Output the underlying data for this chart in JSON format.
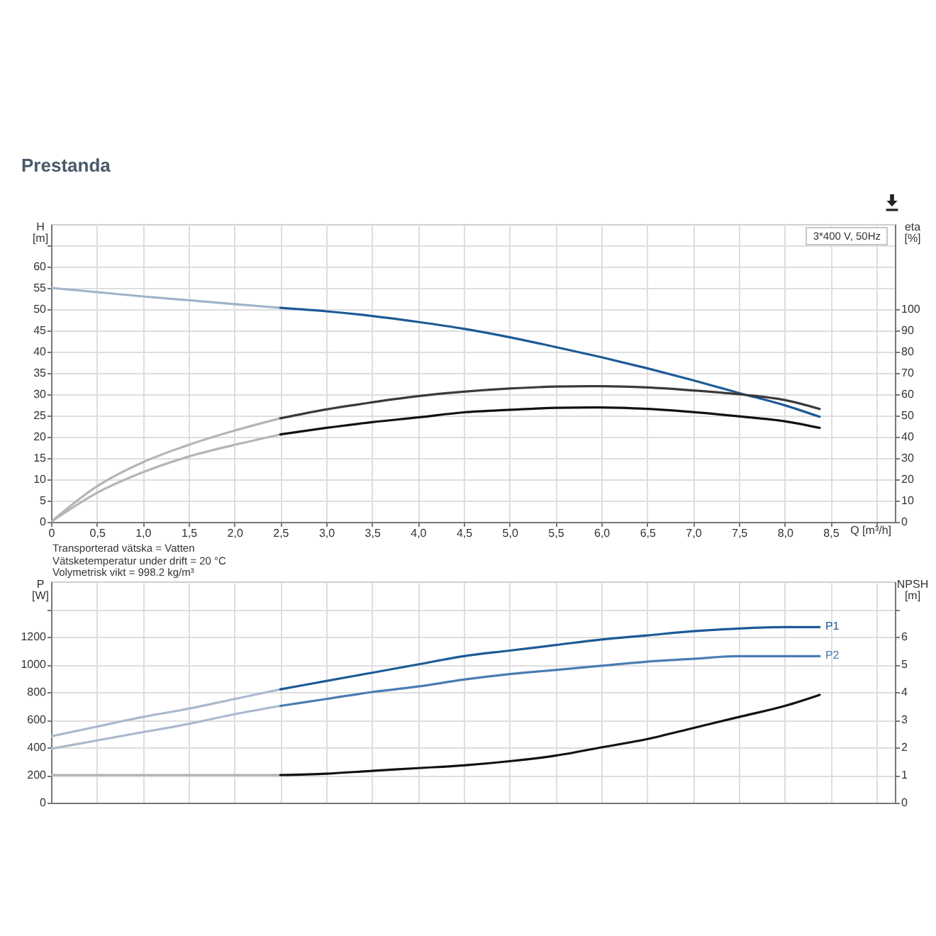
{
  "chart_data": [
    {
      "type": "line",
      "title": "Prestanda",
      "xlabel": "Q [m³/h]",
      "ylabel": "H [m]",
      "y2label": "eta [%]",
      "xlim": [
        0,
        9.2
      ],
      "xticks": [
        0,
        {
          "value": 0.5,
          "label": "0,5"
        },
        {
          "value": 1,
          "label": "1,0"
        },
        {
          "value": 1.5,
          "label": "1,5"
        },
        {
          "value": 2,
          "label": "2,0"
        },
        {
          "value": 2.5,
          "label": "2,5"
        },
        {
          "value": 3,
          "label": "3,0"
        },
        {
          "value": 3.5,
          "label": "3,5"
        },
        {
          "value": 4,
          "label": "4,0"
        },
        {
          "value": 4.5,
          "label": "4,5"
        },
        {
          "value": 5,
          "label": "5,0"
        },
        {
          "value": 5.5,
          "label": "5,5"
        },
        {
          "value": 6,
          "label": "6,0"
        },
        {
          "value": 6.5,
          "label": "6,5"
        },
        {
          "value": 7,
          "label": "7,0"
        },
        {
          "value": 7.5,
          "label": "7,5"
        },
        {
          "value": 8,
          "label": "8,0"
        },
        {
          "value": 8.5,
          "label": "8,5"
        },
        {
          "value": 9,
          "label": null
        }
      ],
      "ylim": [
        0,
        70
      ],
      "yticks": [
        0,
        5,
        10,
        15,
        20,
        25,
        30,
        35,
        40,
        45,
        50,
        55,
        60,
        {
          "value": 65,
          "label": null
        }
      ],
      "y2lim": [
        0,
        140
      ],
      "y2ticks": [
        0,
        10,
        20,
        30,
        40,
        50,
        60,
        70,
        80,
        90,
        100
      ],
      "grid": true,
      "annotations": [
        "3*400 V, 50Hz",
        "Transporterad vätska = Vatten",
        "Vätsketemperatur under drift = 20 °C",
        "Volymetrisk vikt = 998.2 kg/m³"
      ],
      "series": [
        {
          "color": "#9fb3c8",
          "x": [
            0,
            0.5,
            1,
            1.5,
            2,
            2.5
          ],
          "values": [
            55.0,
            54.0,
            53.0,
            52.1,
            51.2,
            50.3
          ]
        },
        {
          "color": "#1c5a96",
          "x": [
            2.5,
            3,
            3.5,
            4,
            4.5,
            5,
            5.5,
            6,
            6.5,
            7,
            7.5,
            8,
            8.38
          ],
          "values": [
            50.3,
            49.5,
            48.4,
            47.0,
            45.4,
            43.4,
            41.1,
            38.7,
            36.1,
            33.3,
            30.3,
            27.4,
            24.7
          ]
        },
        {
          "color": "#b5b5b5",
          "axis": "y2",
          "x": [
            0,
            0.5,
            1,
            1.5,
            2,
            2.5
          ],
          "values": [
            0,
            16.7,
            28,
            36.2,
            42.9,
            48.7
          ]
        },
        {
          "color": "#3a3a3a",
          "axis": "y2",
          "x": [
            2.5,
            3,
            3.5,
            4,
            4.5,
            5,
            5.5,
            6,
            6.5,
            7,
            7.5,
            8,
            8.38
          ],
          "values": [
            48.7,
            52.9,
            56.2,
            59.1,
            61.2,
            62.7,
            63.6,
            63.8,
            63.2,
            61.8,
            60.0,
            57.3,
            53.1
          ]
        },
        {
          "color": "#b5b5b5",
          "axis": "y2",
          "x": [
            0,
            0.5,
            1,
            1.5,
            2,
            2.5
          ],
          "values": [
            0,
            13.6,
            23.3,
            30.7,
            36.2,
            41.1
          ]
        },
        {
          "color": "#111111",
          "axis": "y2",
          "x": [
            2.5,
            3,
            3.5,
            4,
            4.5,
            5,
            5.5,
            6,
            6.5,
            7,
            7.5,
            8,
            8.38
          ],
          "values": [
            41.1,
            44.2,
            46.9,
            49.1,
            51.5,
            52.7,
            53.6,
            53.8,
            53.1,
            51.6,
            49.6,
            47.3,
            44.2
          ]
        }
      ]
    },
    {
      "type": "line",
      "ylabel": "P [W]",
      "y2label": "NPSH [m]",
      "xlim": [
        0,
        9.2
      ],
      "xticks": [
        0,
        0.5,
        1,
        1.5,
        2,
        2.5,
        3,
        3.5,
        4,
        4.5,
        5,
        5.5,
        6,
        6.5,
        7,
        7.5,
        8,
        8.5,
        9
      ],
      "ylim": [
        0,
        1600
      ],
      "yticks": [
        0,
        200,
        400,
        600,
        800,
        1000,
        1200,
        {
          "value": 1400,
          "label": null
        }
      ],
      "y2lim": [
        0,
        8
      ],
      "y2ticks": [
        0,
        1,
        2,
        3,
        4,
        5,
        6,
        {
          "value": 7,
          "label": null
        }
      ],
      "grid": true,
      "tick_labels": "y",
      "series": [
        {
          "color": "#a9b9cc",
          "x": [
            0,
            0.5,
            1,
            1.5,
            2,
            2.5
          ],
          "values": [
            480,
            550,
            620,
            680,
            750,
            820
          ]
        },
        {
          "name": "P1",
          "color": "#1c5a96",
          "x": [
            2.5,
            3,
            3.5,
            4,
            4.5,
            5,
            5.5,
            6,
            6.5,
            7,
            7.5,
            8,
            8.38
          ],
          "values": [
            820,
            880,
            940,
            1000,
            1060,
            1100,
            1140,
            1180,
            1210,
            1240,
            1260,
            1270,
            1270
          ]
        },
        {
          "color": "#a9b9cc",
          "x": [
            0,
            0.5,
            1,
            1.5,
            2,
            2.5
          ],
          "values": [
            390,
            450,
            510,
            570,
            640,
            700
          ]
        },
        {
          "name": "P2",
          "color": "#4a7db3",
          "x": [
            2.5,
            3,
            3.5,
            4,
            4.5,
            5,
            5.5,
            6,
            6.5,
            7,
            7.5,
            8,
            8.38
          ],
          "values": [
            700,
            750,
            800,
            840,
            890,
            930,
            960,
            990,
            1020,
            1040,
            1060,
            1060,
            1060
          ]
        },
        {
          "color": "#b0b0b0",
          "axis": "y2",
          "x": [
            0,
            0.5,
            1,
            1.5,
            2,
            2.5
          ],
          "values": [
            1.0,
            1.0,
            1.0,
            1.0,
            1.0,
            1.0
          ]
        },
        {
          "color": "#111111",
          "axis": "y2",
          "x": [
            2.5,
            3,
            3.5,
            4,
            4.5,
            5,
            5.5,
            6,
            6.5,
            7,
            7.5,
            8,
            8.38
          ],
          "values": [
            1.0,
            1.05,
            1.15,
            1.25,
            1.35,
            1.5,
            1.7,
            2.0,
            2.3,
            2.7,
            3.1,
            3.5,
            3.9
          ]
        }
      ]
    }
  ]
}
